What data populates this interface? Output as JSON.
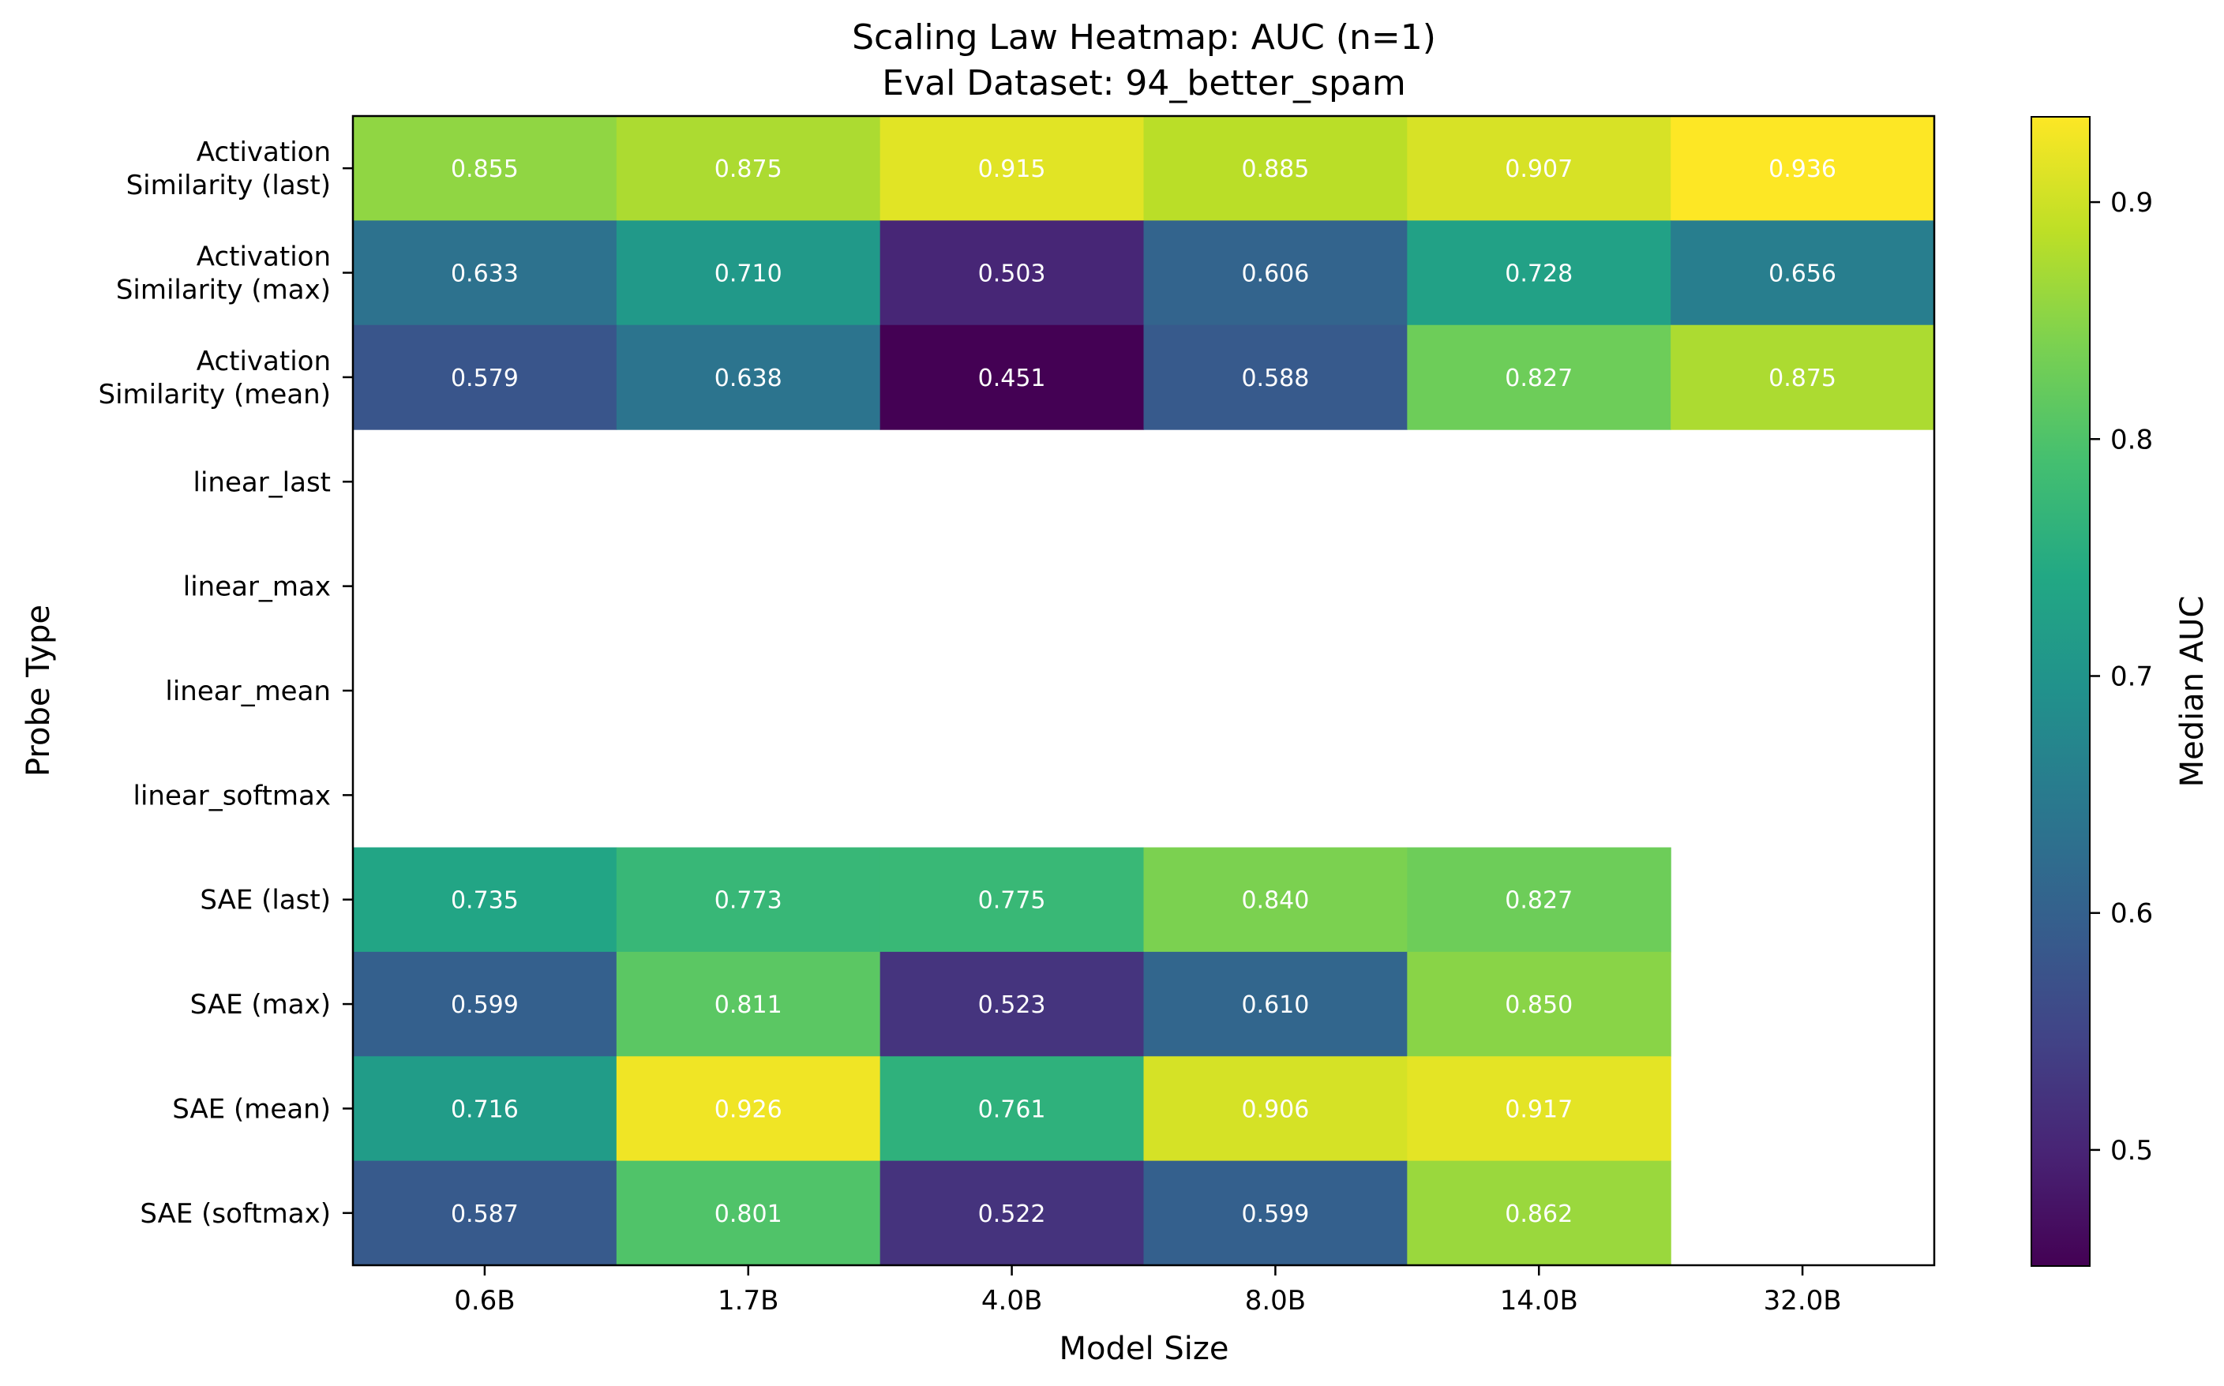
{
  "chart_data": {
    "type": "heatmap",
    "title": "Scaling Law Heatmap: AUC (n=1)",
    "subtitle": "Eval Dataset: 94_better_spam",
    "xlabel": "Model Size",
    "ylabel": "Probe Type",
    "x_categories": [
      "0.6B",
      "1.7B",
      "4.0B",
      "8.0B",
      "14.0B",
      "32.0B"
    ],
    "y_categories": [
      [
        "Activation",
        "Similarity (last)"
      ],
      [
        "Activation",
        "Similarity (max)"
      ],
      [
        "Activation",
        "Similarity (mean)"
      ],
      [
        "linear_last"
      ],
      [
        "linear_max"
      ],
      [
        "linear_mean"
      ],
      [
        "linear_softmax"
      ],
      [
        "SAE (last)"
      ],
      [
        "SAE (max)"
      ],
      [
        "SAE (mean)"
      ],
      [
        "SAE (softmax)"
      ]
    ],
    "values": [
      [
        0.855,
        0.875,
        0.915,
        0.885,
        0.907,
        0.936
      ],
      [
        0.633,
        0.71,
        0.503,
        0.606,
        0.728,
        0.656
      ],
      [
        0.579,
        0.638,
        0.451,
        0.588,
        0.827,
        0.875
      ],
      [
        null,
        null,
        null,
        null,
        null,
        null
      ],
      [
        null,
        null,
        null,
        null,
        null,
        null
      ],
      [
        null,
        null,
        null,
        null,
        null,
        null
      ],
      [
        null,
        null,
        null,
        null,
        null,
        null
      ],
      [
        0.735,
        0.773,
        0.775,
        0.84,
        0.827,
        null
      ],
      [
        0.599,
        0.811,
        0.523,
        0.61,
        0.85,
        null
      ],
      [
        0.716,
        0.926,
        0.761,
        0.906,
        0.917,
        null
      ],
      [
        0.587,
        0.801,
        0.522,
        0.599,
        0.862,
        null
      ]
    ],
    "colormap": "viridis",
    "value_range": [
      0.451,
      0.936
    ],
    "colorbar": {
      "label": "Median AUC",
      "ticks": [
        0.5,
        0.6,
        0.7,
        0.8,
        0.9
      ],
      "tick_labels": [
        "0.5",
        "0.6",
        "0.7",
        "0.8",
        "0.9"
      ]
    },
    "grid": false
  }
}
